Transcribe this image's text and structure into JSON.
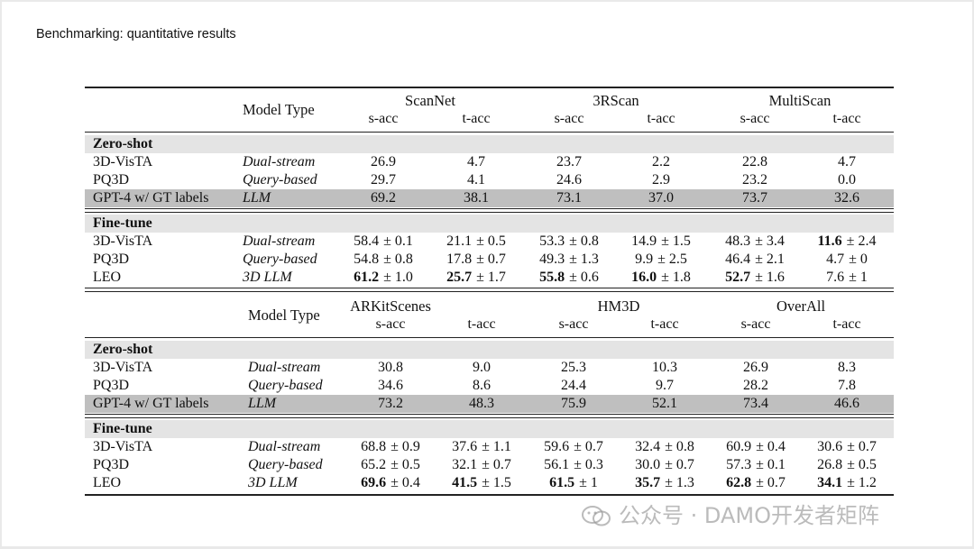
{
  "title": "Benchmarking: quantitative results",
  "model_type_header": "Model Type",
  "metric_labels": [
    "s-acc",
    "t-acc"
  ],
  "tables": [
    {
      "datasets": [
        "ScanNet",
        "3RScan",
        "MultiScan"
      ],
      "sections": [
        {
          "label": "Zero-shot",
          "rows": [
            {
              "model": "3D-VisTA",
              "type": "Dual-stream",
              "cells": [
                [
                  "26.9"
                ],
                [
                  "4.7"
                ],
                [
                  "23.7"
                ],
                [
                  "2.2"
                ],
                [
                  "22.8"
                ],
                [
                  "4.7"
                ]
              ]
            },
            {
              "model": "PQ3D",
              "type": "Query-based",
              "cells": [
                [
                  "29.7"
                ],
                [
                  "4.1"
                ],
                [
                  "24.6"
                ],
                [
                  "2.9"
                ],
                [
                  "23.2"
                ],
                [
                  "0.0"
                ]
              ]
            },
            {
              "model": "GPT-4 w/ GT labels",
              "type": "LLM",
              "highlight": true,
              "cells": [
                [
                  "69.2"
                ],
                [
                  "38.1"
                ],
                [
                  "73.1"
                ],
                [
                  "37.0"
                ],
                [
                  "73.7"
                ],
                [
                  "32.6"
                ]
              ]
            }
          ]
        },
        {
          "label": "Fine-tune",
          "rows": [
            {
              "model": "3D-VisTA",
              "type": "Dual-stream",
              "cells": [
                [
                  "58.4",
                  "± 0.1"
                ],
                [
                  "21.1",
                  "± 0.5"
                ],
                [
                  "53.3",
                  "± 0.8"
                ],
                [
                  "14.9",
                  "± 1.5"
                ],
                [
                  "48.3",
                  "± 3.4"
                ],
                [
                  "11.6",
                  "± 2.4",
                  true
                ]
              ]
            },
            {
              "model": "PQ3D",
              "type": "Query-based",
              "cells": [
                [
                  "54.8",
                  "± 0.8"
                ],
                [
                  "17.8",
                  "± 0.7"
                ],
                [
                  "49.3",
                  "± 1.3"
                ],
                [
                  "9.9",
                  "± 2.5"
                ],
                [
                  "46.4",
                  "± 2.1"
                ],
                [
                  "4.7",
                  "± 0"
                ]
              ]
            },
            {
              "model": "LEO",
              "type": "3D LLM",
              "cells": [
                [
                  "61.2",
                  "± 1.0",
                  true
                ],
                [
                  "25.7",
                  "± 1.7",
                  true
                ],
                [
                  "55.8",
                  "± 0.6",
                  true
                ],
                [
                  "16.0",
                  "± 1.8",
                  true
                ],
                [
                  "52.7",
                  "± 1.6",
                  true
                ],
                [
                  "7.6",
                  "± 1"
                ]
              ]
            }
          ]
        }
      ]
    },
    {
      "datasets": [
        "ARKitScenes",
        "HM3D",
        "OverAll"
      ],
      "sections": [
        {
          "label": "Zero-shot",
          "rows": [
            {
              "model": "3D-VisTA",
              "type": "Dual-stream",
              "cells": [
                [
                  "30.8"
                ],
                [
                  "9.0"
                ],
                [
                  "25.3"
                ],
                [
                  "10.3"
                ],
                [
                  "26.9"
                ],
                [
                  "8.3"
                ]
              ]
            },
            {
              "model": "PQ3D",
              "type": "Query-based",
              "cells": [
                [
                  "34.6"
                ],
                [
                  "8.6"
                ],
                [
                  "24.4"
                ],
                [
                  "9.7"
                ],
                [
                  "28.2"
                ],
                [
                  "7.8"
                ]
              ]
            },
            {
              "model": "GPT-4 w/ GT labels",
              "type": "LLM",
              "highlight": true,
              "cells": [
                [
                  "73.2"
                ],
                [
                  "48.3"
                ],
                [
                  "75.9"
                ],
                [
                  "52.1"
                ],
                [
                  "73.4"
                ],
                [
                  "46.6"
                ]
              ]
            }
          ]
        },
        {
          "label": "Fine-tune",
          "rows": [
            {
              "model": "3D-VisTA",
              "type": "Dual-stream",
              "cells": [
                [
                  "68.8",
                  "± 0.9"
                ],
                [
                  "37.6",
                  "± 1.1"
                ],
                [
                  "59.6",
                  "± 0.7"
                ],
                [
                  "32.4",
                  "± 0.8"
                ],
                [
                  "60.9",
                  "± 0.4"
                ],
                [
                  "30.6",
                  "± 0.7"
                ]
              ]
            },
            {
              "model": "PQ3D",
              "type": "Query-based",
              "cells": [
                [
                  "65.2",
                  "± 0.5"
                ],
                [
                  "32.1",
                  "± 0.7"
                ],
                [
                  "56.1",
                  "± 0.3"
                ],
                [
                  "30.0",
                  "± 0.7"
                ],
                [
                  "57.3",
                  "± 0.1"
                ],
                [
                  "26.8",
                  "± 0.5"
                ]
              ]
            },
            {
              "model": "LEO",
              "type": "3D LLM",
              "cells": [
                [
                  "69.6",
                  "± 0.4",
                  true
                ],
                [
                  "41.5",
                  "± 1.5",
                  true
                ],
                [
                  "61.5",
                  "± 1",
                  true
                ],
                [
                  "35.7",
                  "± 1.3",
                  true
                ],
                [
                  "62.8",
                  "± 0.7",
                  true
                ],
                [
                  "34.1",
                  "± 1.2",
                  true
                ]
              ]
            }
          ]
        }
      ]
    }
  ],
  "watermark": {
    "text": "公众号 · DAMO开发者矩阵",
    "icon": "wechat-icon"
  }
}
